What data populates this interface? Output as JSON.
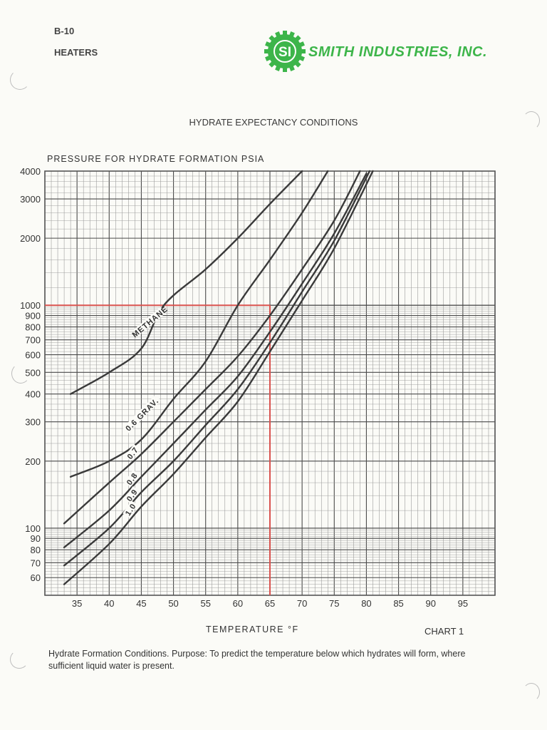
{
  "header": {
    "page_code": "B-10",
    "section": "HEATERS",
    "company": "SMITH INDUSTRIES, INC.",
    "logo_monogram": "SI",
    "brand_color": "#3db54a"
  },
  "title": "HYDRATE EXPECTANCY CONDITIONS",
  "chart_label": "CHART 1",
  "caption": "Hydrate Formation Conditions. Purpose: To predict the temperature below which hydrates will form, where sufficient liquid water is present.",
  "chart_data": {
    "type": "line",
    "title": "HYDRATE EXPECTANCY CONDITIONS",
    "xlabel": "TEMPERATURE °F",
    "ylabel": "PRESSURE FOR HYDRATE FORMATION PSIA",
    "y_scale": "log",
    "xlim": [
      30,
      100
    ],
    "ylim": [
      50,
      4000
    ],
    "grid": true,
    "x_ticks": [
      35,
      40,
      45,
      50,
      55,
      60,
      65,
      70,
      75,
      80,
      85,
      90,
      95
    ],
    "y_ticks": [
      60,
      70,
      80,
      90,
      100,
      200,
      300,
      400,
      500,
      600,
      700,
      800,
      900,
      1000,
      2000,
      3000,
      4000
    ],
    "y_tick_labels": [
      "60",
      "70",
      "80",
      "90",
      "100",
      "200",
      "300",
      "400",
      "500",
      "600",
      "700",
      "800",
      "900",
      "1000",
      "2000",
      "3000",
      "4000"
    ],
    "series": [
      {
        "name": "METHANE",
        "label": "METHANE",
        "x": [
          34,
          40,
          45,
          48.5,
          55,
          60,
          65,
          70
        ],
        "y": [
          400,
          500,
          640,
          1000,
          1450,
          2000,
          2850,
          4000
        ]
      },
      {
        "name": "0.6 GRAV",
        "label": "0.6 GRAV.",
        "x": [
          34,
          40,
          45,
          50,
          55,
          60,
          65,
          70,
          74
        ],
        "y": [
          170,
          200,
          250,
          380,
          560,
          1000,
          1600,
          2600,
          4000
        ]
      },
      {
        "name": "0.7",
        "label": "0.7",
        "x": [
          33,
          40,
          45,
          50,
          55,
          60,
          65,
          70,
          75,
          79
        ],
        "y": [
          105,
          160,
          215,
          300,
          420,
          590,
          900,
          1450,
          2400,
          4000
        ]
      },
      {
        "name": "0.8",
        "label": "0.8",
        "x": [
          33,
          40,
          45,
          50,
          55,
          60,
          65,
          70,
          75,
          80
        ],
        "y": [
          82,
          120,
          170,
          240,
          340,
          480,
          760,
          1250,
          2100,
          3900
        ]
      },
      {
        "name": "0.9",
        "label": "0.9",
        "x": [
          33,
          40,
          45,
          50,
          55,
          60,
          65,
          70,
          75,
          80.5
        ],
        "y": [
          68,
          100,
          145,
          200,
          290,
          420,
          680,
          1150,
          1950,
          4000
        ]
      },
      {
        "name": "1.0",
        "label": "1.0",
        "x": [
          33,
          40,
          45,
          50,
          55,
          60,
          65,
          70,
          75,
          81
        ],
        "y": [
          56,
          85,
          125,
          175,
          255,
          370,
          620,
          1050,
          1800,
          4000
        ]
      }
    ],
    "annotations": [
      {
        "type": "reference_line",
        "color": "#d9534f",
        "desc": "horizontal at 1000 psia from y-axis to 65°F",
        "y": 1000,
        "x_end": 65
      },
      {
        "type": "reference_line",
        "color": "#d9534f",
        "desc": "vertical at 65°F from 1000 psia down to x-axis",
        "x": 65,
        "y_start": 1000
      }
    ],
    "colors": {
      "curve": "#3a3a3a",
      "grid": "#555555",
      "reference": "#d9534f"
    }
  }
}
